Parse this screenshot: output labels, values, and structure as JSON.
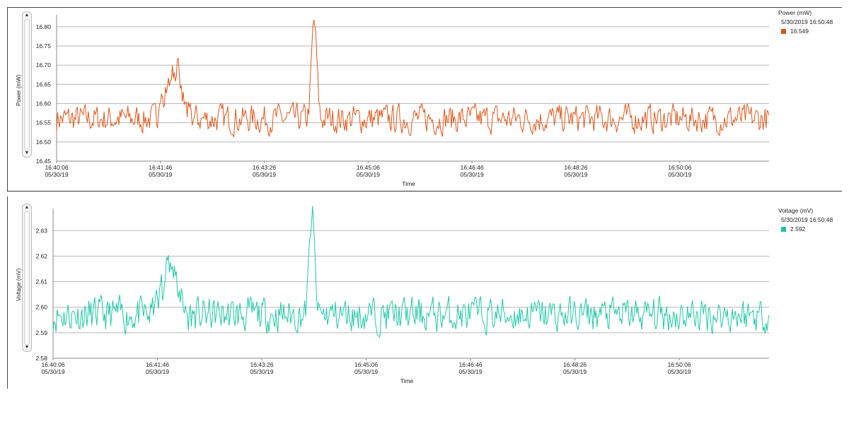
{
  "chart_data": [
    {
      "type": "line",
      "ylabel": "Power (mW)",
      "xlabel": "Time",
      "ylim": [
        16.45,
        16.82
      ],
      "yticks": [
        "16.45",
        "16.50",
        "16.55",
        "16.60",
        "16.65",
        "16.70",
        "16.75",
        "16.80"
      ],
      "xticks": [
        {
          "time": "16:40:06",
          "date": "05/30/19"
        },
        {
          "time": "16:41:46",
          "date": "05/30/19"
        },
        {
          "time": "16:43:26",
          "date": "05/30/19"
        },
        {
          "time": "16:45:06",
          "date": "05/30/19"
        },
        {
          "time": "16:46:46",
          "date": "05/30/19"
        },
        {
          "time": "16:48:26",
          "date": "05/30/19"
        },
        {
          "time": "16:50:06",
          "date": "05/30/19"
        }
      ],
      "legend": {
        "title": "Power (mW)",
        "timestamp": "5/30/2019 16:50:48",
        "value": "16.549"
      },
      "grid": true,
      "color": "#e0571b",
      "x_range": [
        "16:40:06",
        "16:51:32"
      ],
      "baseline": 16.56,
      "series": [
        {
          "values_summary": "noisy around 16.55-16.58 with peaks 16.70 near 16:41:58 and 16.81 near 16:44:14"
        }
      ],
      "peaks": [
        {
          "time": "16:41:58",
          "value": 16.7
        },
        {
          "time": "16:44:14",
          "value": 16.81
        }
      ]
    },
    {
      "type": "line",
      "ylabel": "Voltage (mV)",
      "xlabel": "Time",
      "ylim": [
        2.58,
        2.637
      ],
      "yticks": [
        "2.58",
        "2.59",
        "2.60",
        "2.61",
        "2.62",
        "2.63"
      ],
      "xticks": [
        {
          "time": "16:40:06",
          "date": "05/30/19"
        },
        {
          "time": "16:41:46",
          "date": "05/30/19"
        },
        {
          "time": "16:43:26",
          "date": "05/30/19"
        },
        {
          "time": "16:45:06",
          "date": "05/30/19"
        },
        {
          "time": "16:46:46",
          "date": "05/30/19"
        },
        {
          "time": "16:48:26",
          "date": "05/30/19"
        },
        {
          "time": "16:50:06",
          "date": "05/30/19"
        }
      ],
      "legend": {
        "title": "Voltage (mV)",
        "timestamp": "5/30/2019 16:50:48",
        "value": "2.592"
      },
      "grid": true,
      "color": "#1ec9a7",
      "x_range": [
        "16:40:06",
        "16:51:32"
      ],
      "baseline": 2.597,
      "peaks": [
        {
          "time": "16:41:58",
          "value": 2.619
        },
        {
          "time": "16:44:14",
          "value": 2.636
        }
      ]
    }
  ]
}
